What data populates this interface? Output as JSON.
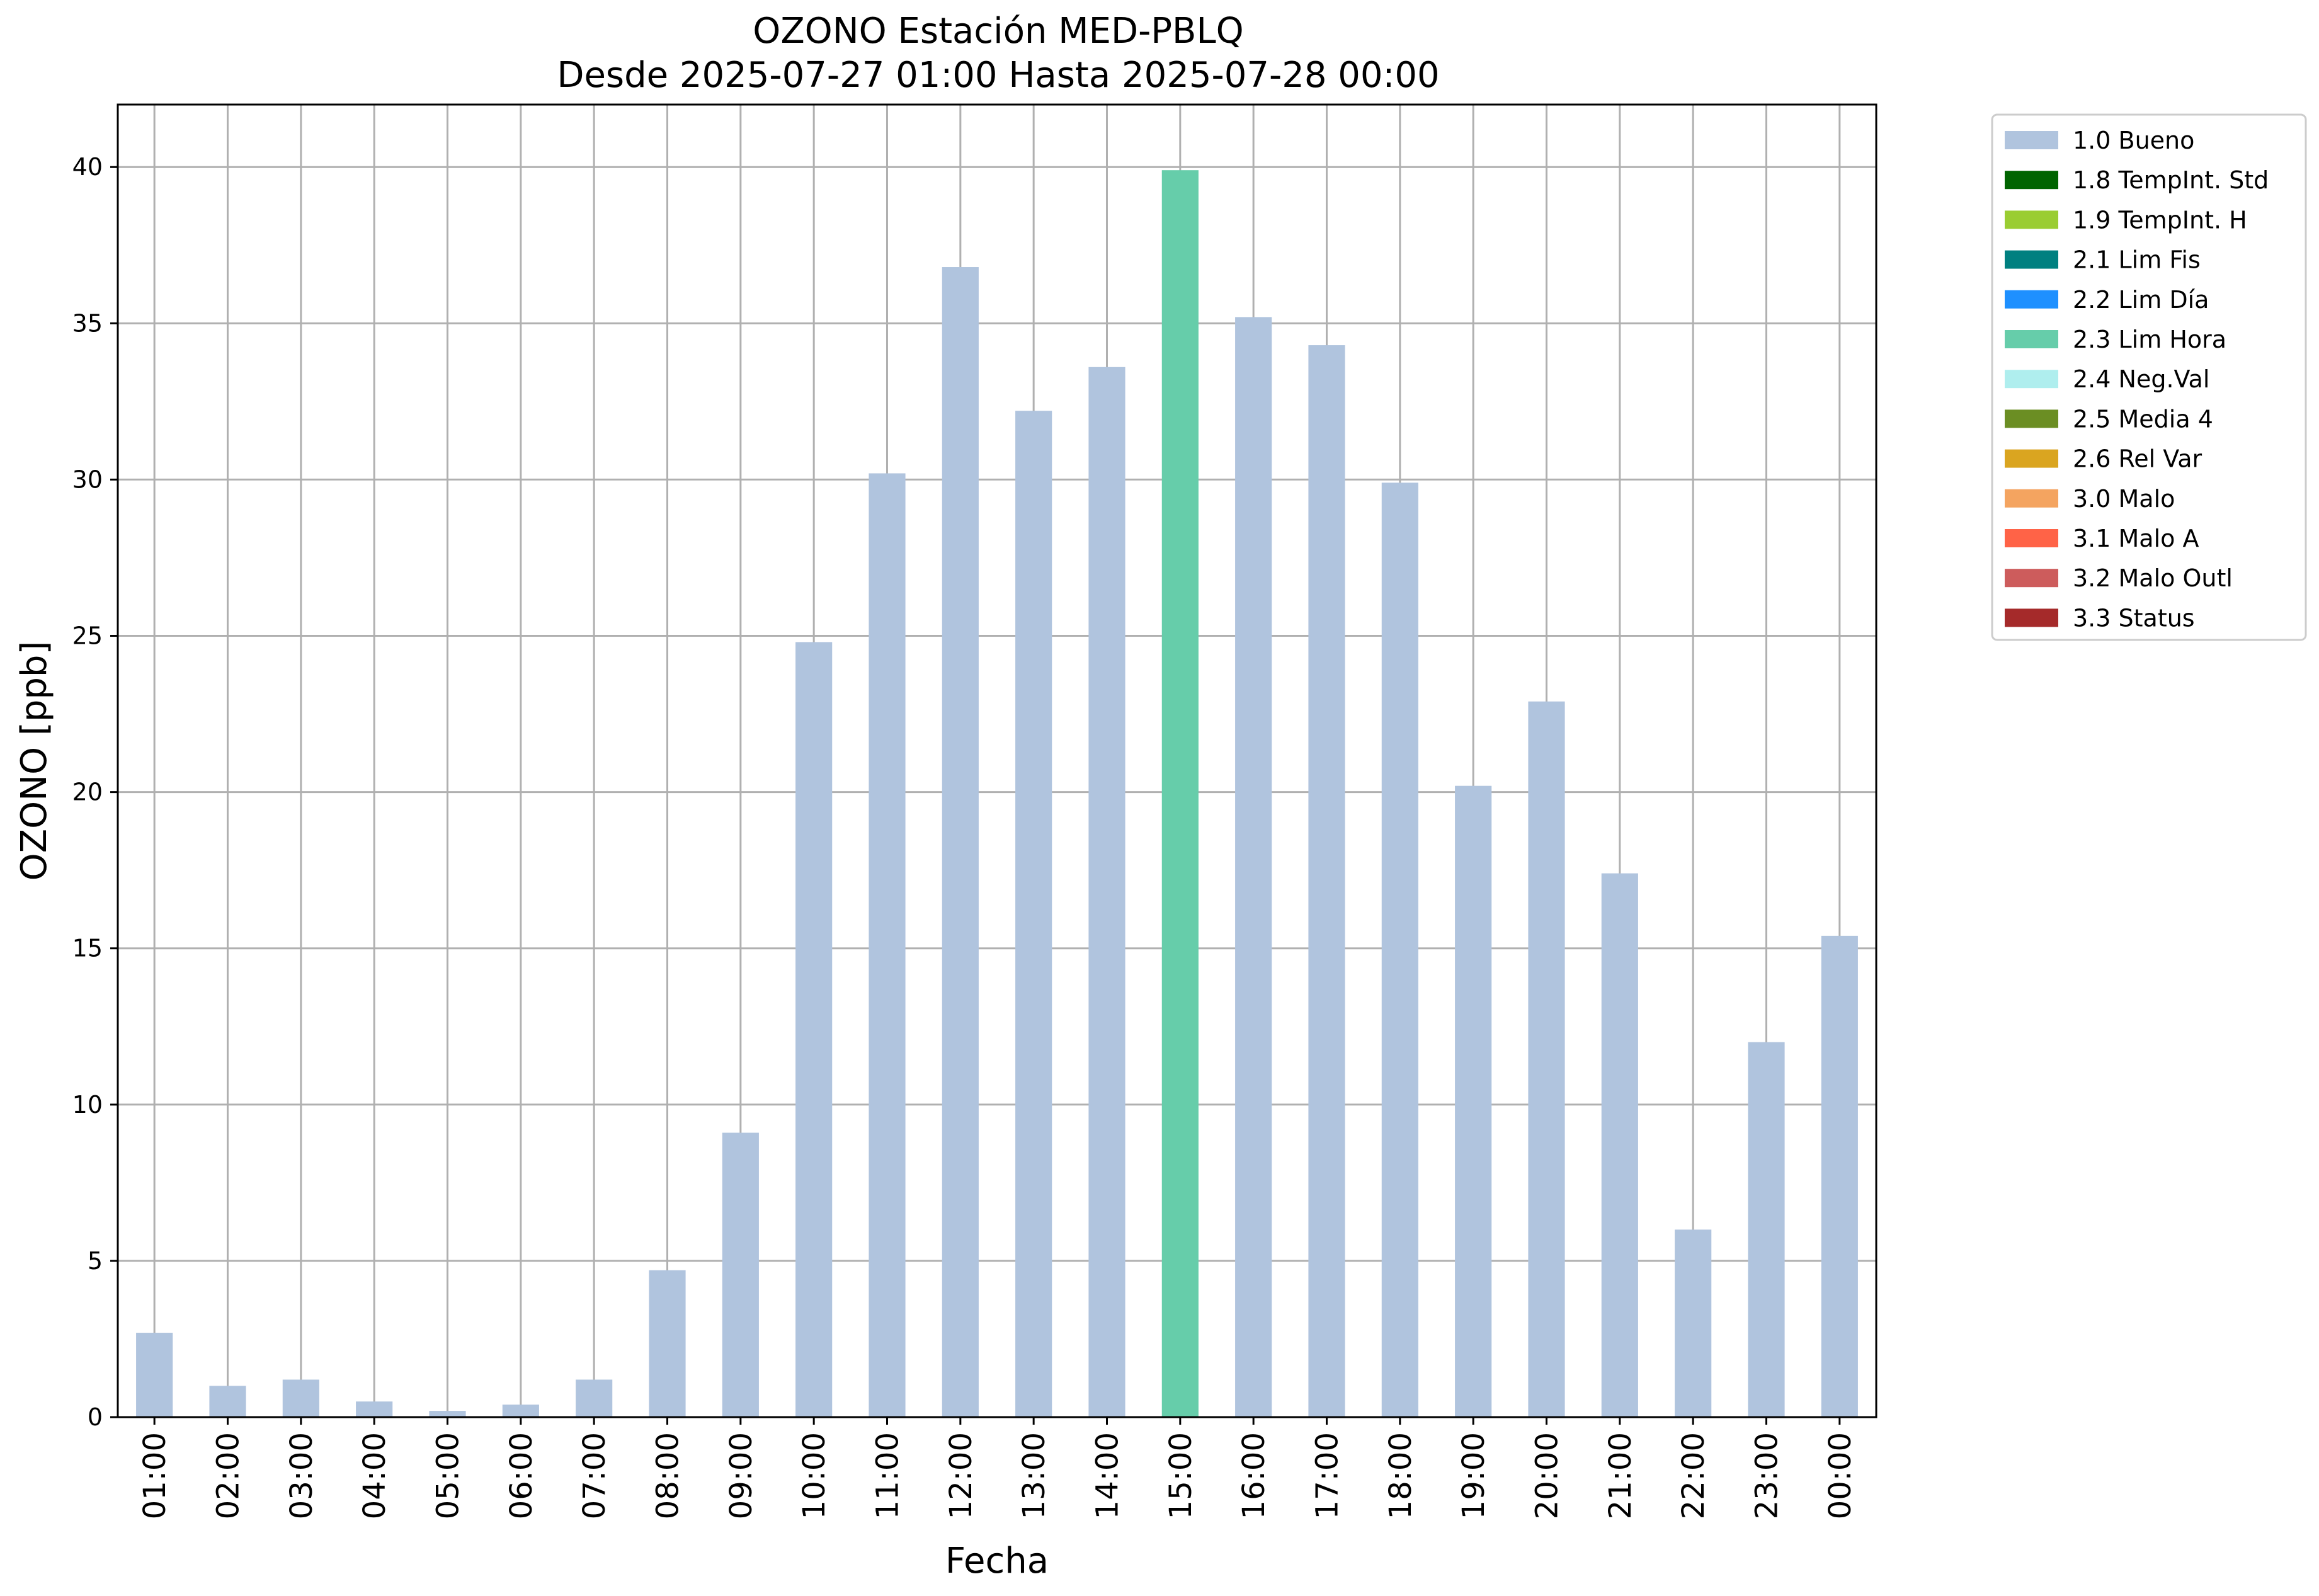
{
  "chart_data": {
    "type": "bar",
    "title": "OZONO Estación MED-PBLQ",
    "subtitle": "Desde 2025-07-27 01:00 Hasta 2025-07-28 00:00",
    "xlabel": "Fecha",
    "ylabel": "OZONO [ppb]",
    "ylim": [
      0,
      42
    ],
    "yticks": [
      0,
      5,
      10,
      15,
      20,
      25,
      30,
      35,
      40
    ],
    "grid": true,
    "legend_position": "outside-right",
    "categories": [
      "01:00",
      "02:00",
      "03:00",
      "04:00",
      "05:00",
      "06:00",
      "07:00",
      "08:00",
      "09:00",
      "10:00",
      "11:00",
      "12:00",
      "13:00",
      "14:00",
      "15:00",
      "16:00",
      "17:00",
      "18:00",
      "19:00",
      "20:00",
      "21:00",
      "22:00",
      "23:00",
      "00:00"
    ],
    "values": [
      2.7,
      1.0,
      1.2,
      0.5,
      0.2,
      0.4,
      1.2,
      4.7,
      9.1,
      24.8,
      30.2,
      36.8,
      32.2,
      33.6,
      39.9,
      35.2,
      34.3,
      29.9,
      20.2,
      22.9,
      17.4,
      6.0,
      12.0,
      15.4
    ],
    "flags": [
      "1.0 Bueno",
      "1.0 Bueno",
      "1.0 Bueno",
      "1.0 Bueno",
      "1.0 Bueno",
      "1.0 Bueno",
      "1.0 Bueno",
      "1.0 Bueno",
      "1.0 Bueno",
      "1.0 Bueno",
      "1.0 Bueno",
      "1.0 Bueno",
      "1.0 Bueno",
      "1.0 Bueno",
      "2.3 Lim Hora",
      "1.0 Bueno",
      "1.0 Bueno",
      "1.0 Bueno",
      "1.0 Bueno",
      "1.0 Bueno",
      "1.0 Bueno",
      "1.0 Bueno",
      "1.0 Bueno",
      "1.0 Bueno"
    ],
    "legend": [
      {
        "label": "1.0 Bueno",
        "color": "#b0c4de"
      },
      {
        "label": "1.8 TempInt. Std",
        "color": "#006400"
      },
      {
        "label": "1.9 TempInt. H",
        "color": "#9acd32"
      },
      {
        "label": "2.1 Lim Fis",
        "color": "#008080"
      },
      {
        "label": "2.2 Lim Día",
        "color": "#1e90ff"
      },
      {
        "label": "2.3 Lim Hora",
        "color": "#66cdaa"
      },
      {
        "label": "2.4 Neg.Val",
        "color": "#afeeee"
      },
      {
        "label": "2.5 Media 4",
        "color": "#6b8e23"
      },
      {
        "label": "2.6 Rel Var",
        "color": "#daa520"
      },
      {
        "label": "3.0 Malo",
        "color": "#f4a460"
      },
      {
        "label": "3.1 Malo A",
        "color": "#ff6347"
      },
      {
        "label": "3.2 Malo Outl",
        "color": "#cd5c5c"
      },
      {
        "label": "3.3 Status",
        "color": "#a52a2a"
      }
    ],
    "grid_color": "#b0b0b0"
  }
}
